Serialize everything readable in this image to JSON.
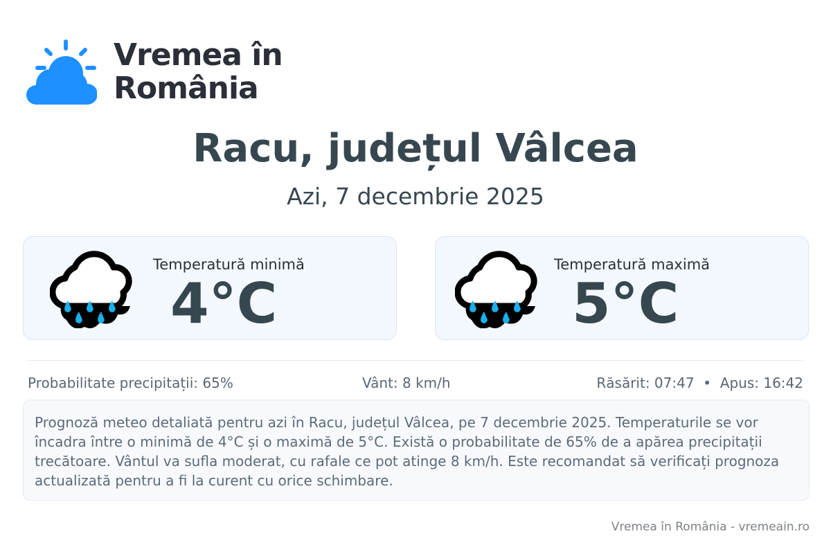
{
  "brand": {
    "name": "Vremea în România",
    "line1": "Vremea în",
    "line2": "România",
    "color": "#1e90ff"
  },
  "header": {
    "title": "Racu, județul Vâlcea",
    "subtitle": "Azi, 7 decembrie 2025"
  },
  "cards": [
    {
      "label": "Temperatură minimă",
      "value": "4°C",
      "icon": "rain-cloud-icon"
    },
    {
      "label": "Temperatură maximă",
      "value": "5°C",
      "icon": "rain-cloud-icon"
    }
  ],
  "stats": {
    "precipitation": "Probabilitate precipitații: 65%",
    "wind": "Vânt: 8 km/h",
    "sun": "Răsărit: 07:47  •  Apus: 16:42"
  },
  "description": "Prognoză meteo detaliată pentru azi în Racu, județul Vâlcea, pe 7 decembrie 2025. Temperaturile se vor încadra între o minimă de 4°C și o maximă de 5°C. Există o probabilitate de 65% de a apărea precipitații trecătoare. Vântul va sufla moderat, cu rafale ce pot atinge 8 km/h. Este recomandat să verificați prognoza actualizată pentru a fi la curent cu orice schimbare.",
  "footer": "Vremea în România - vremeain.ro"
}
